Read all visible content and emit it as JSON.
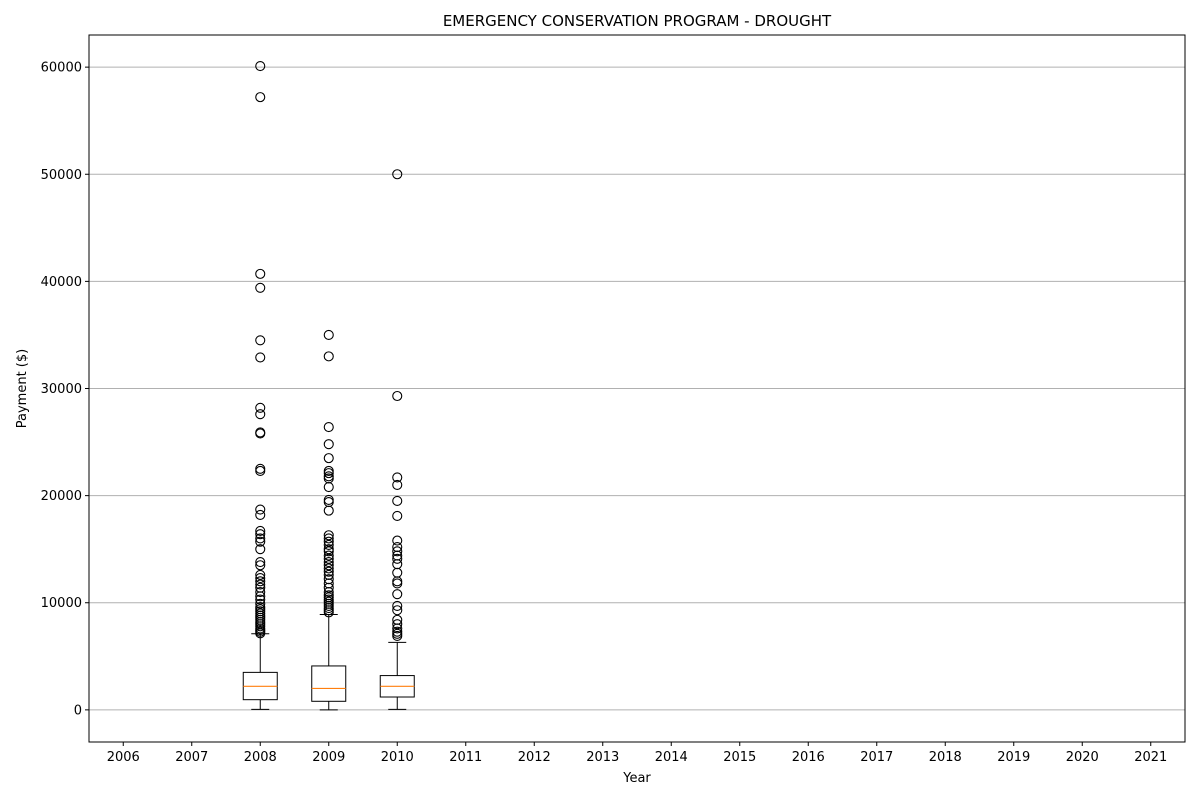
{
  "chart_data": {
    "type": "box",
    "title": "EMERGENCY CONSERVATION PROGRAM - DROUGHT",
    "xlabel": "Year",
    "ylabel": "Payment ($)",
    "ylim": [
      -3000,
      63000
    ],
    "x_categories": [
      "2006",
      "2007",
      "2008",
      "2009",
      "2010",
      "2011",
      "2012",
      "2013",
      "2014",
      "2015",
      "2016",
      "2017",
      "2018",
      "2019",
      "2020",
      "2021"
    ],
    "y_ticks": [
      0,
      10000,
      20000,
      30000,
      40000,
      50000,
      60000
    ],
    "y_tick_labels": [
      "0",
      "10000",
      "20000",
      "30000",
      "40000",
      "50000",
      "60000"
    ],
    "grid": "y",
    "colors": {
      "median": "#ff7f0e",
      "box": "#000000",
      "grid": "#b0b0b0"
    },
    "boxes": [
      {
        "year": "2008",
        "whisker_low": 50,
        "q1": 950,
        "median": 2200,
        "q3": 3500,
        "whisker_high": 7100,
        "outliers": [
          7150,
          7300,
          7450,
          7600,
          7800,
          8000,
          8200,
          8400,
          8600,
          8800,
          9000,
          9200,
          9400,
          9600,
          9900,
          10300,
          10600,
          11000,
          11400,
          11700,
          12000,
          12300,
          12600,
          13500,
          13800,
          15000,
          15700,
          16000,
          16400,
          16700,
          18200,
          18700,
          22300,
          22500,
          25800,
          25900,
          27600,
          28200,
          32900,
          34500,
          39400,
          40700,
          57200,
          60100
        ]
      },
      {
        "year": "2009",
        "whisker_low": 0,
        "q1": 800,
        "median": 2000,
        "q3": 4100,
        "whisker_high": 8900,
        "outliers": [
          9100,
          9300,
          9500,
          9700,
          9900,
          10100,
          10300,
          10500,
          10700,
          11000,
          11400,
          11800,
          12200,
          12600,
          12900,
          13200,
          13500,
          13800,
          14100,
          14400,
          14800,
          15000,
          15400,
          15700,
          16000,
          16300,
          18600,
          19400,
          19600,
          20800,
          21600,
          21800,
          22100,
          22300,
          23500,
          24800,
          26400,
          33000,
          35000
        ]
      },
      {
        "year": "2010",
        "whisker_low": 50,
        "q1": 1200,
        "median": 2200,
        "q3": 3200,
        "whisker_high": 6300,
        "outliers": [
          6900,
          7100,
          7300,
          7600,
          8000,
          8400,
          9300,
          9700,
          10800,
          11800,
          12000,
          12800,
          13600,
          14100,
          14400,
          14800,
          15200,
          15800,
          18100,
          19500,
          21000,
          21700,
          29300,
          50000
        ]
      }
    ]
  }
}
